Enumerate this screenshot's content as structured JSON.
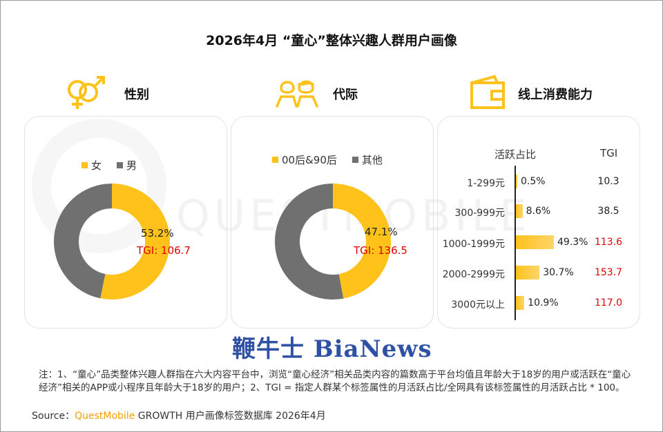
{
  "title": "2026年4月 “童心”整体兴趣人群用户画像",
  "colors": {
    "accent": "#ffc21a",
    "gray": "#707070",
    "tgi_red": "#e00000",
    "brand_blue": "#2f51a5",
    "brand_orange": "#f5a000"
  },
  "sections": {
    "gender": {
      "label": "性别",
      "icon": "gender-symbols-icon"
    },
    "generation": {
      "label": "代际",
      "icon": "two-people-icon"
    },
    "spending": {
      "label": "线上消费能力",
      "icon": "wallet-icon"
    }
  },
  "watermark": "QUESTMOBILE",
  "chart_data": [
    {
      "type": "pie",
      "title": "性别",
      "legend": [
        "女",
        "男"
      ],
      "slices": [
        {
          "name": "女",
          "value": 53.2,
          "color": "#ffc21a"
        },
        {
          "name": "男",
          "value": 46.8,
          "color": "#707070"
        }
      ],
      "value_label": "53.2%",
      "tgi_label": "TGI: 106.7"
    },
    {
      "type": "pie",
      "title": "代际",
      "legend": [
        "00后&90后",
        "其他"
      ],
      "slices": [
        {
          "name": "00后&90后",
          "value": 47.1,
          "color": "#ffc21a"
        },
        {
          "name": "其他",
          "value": 52.9,
          "color": "#707070"
        }
      ],
      "value_label": "47.1%",
      "tgi_label": "TGI: 136.5"
    },
    {
      "type": "bar",
      "title": "线上消费能力",
      "col_active": "活跃占比",
      "col_tgi": "TGI",
      "rows": [
        {
          "category": "1-299元",
          "value": 0.5,
          "label": "0.5%",
          "tgi": "10.3",
          "highlight": false
        },
        {
          "category": "300-999元",
          "value": 8.6,
          "label": "8.6%",
          "tgi": "38.5",
          "highlight": false
        },
        {
          "category": "1000-1999元",
          "value": 49.3,
          "label": "49.3%",
          "tgi": "113.6",
          "highlight": true
        },
        {
          "category": "2000-2999元",
          "value": 30.7,
          "label": "30.7%",
          "tgi": "153.7",
          "highlight": true
        },
        {
          "category": "3000元以上",
          "value": 10.9,
          "label": "10.9%",
          "tgi": "117.0",
          "highlight": true
        }
      ]
    }
  ],
  "logo": "鞭牛士 BiaNews",
  "note": "注：1、“童心”品类整体兴趣人群指在六大内容平台中，浏览“童心经济”相关品类内容的篇数高于平台均值且年龄大于18岁的用户或活跃在“童心经济”相关的APP或小程序且年龄大于18岁的用户；2、TGI = 指定人群某个标签属性的月活跃占比/全网具有该标签属性的月活跃占比 * 100。",
  "source": {
    "prefix": "Source：",
    "brand": "QuestMobile",
    "rest": " GROWTH 用户画像标签数据库 2026年4月"
  }
}
